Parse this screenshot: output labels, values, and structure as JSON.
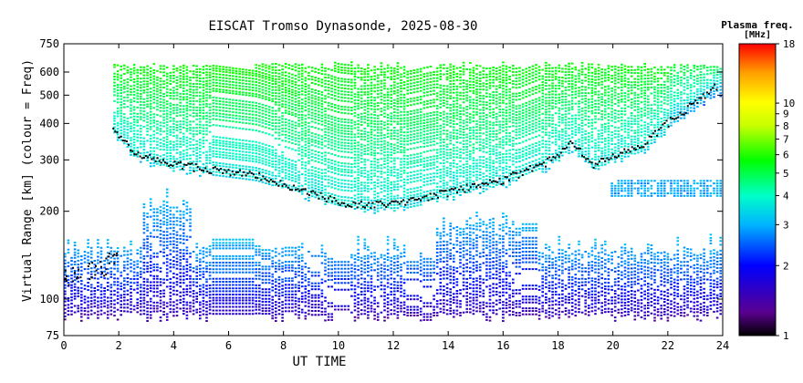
{
  "chart_data": {
    "type": "heatmap",
    "title": "EISCAT Tromso Dynasonde, 2025-08-30",
    "xlabel": "UT TIME",
    "ylabel": "Virtual Range [km] (colour = Freq)",
    "xlim": [
      0,
      24
    ],
    "ylim": [
      75,
      750
    ],
    "yscale": "log",
    "x_ticks": [
      0,
      2,
      4,
      6,
      8,
      10,
      12,
      14,
      16,
      18,
      20,
      22,
      24
    ],
    "y_ticks": [
      75,
      100,
      200,
      300,
      400,
      500,
      600,
      750
    ],
    "colorbar": {
      "title": "Plasma freq.",
      "unit": "[MHz]",
      "scale": "log",
      "range": [
        1,
        18
      ],
      "ticks": [
        1,
        2,
        3,
        4,
        5,
        6,
        7,
        8,
        9,
        10,
        18
      ],
      "colors": [
        "#000000",
        "#5a0090",
        "#0000ff",
        "#00b4ff",
        "#00ffc8",
        "#00ff00",
        "#c8ff00",
        "#ffff00",
        "#ffa000",
        "#ff0000"
      ]
    },
    "layers": {
      "f_region_base_km": [
        {
          "x": 1.8,
          "y": 380
        },
        {
          "x": 2.5,
          "y": 320
        },
        {
          "x": 3.5,
          "y": 295
        },
        {
          "x": 5,
          "y": 280
        },
        {
          "x": 7,
          "y": 265
        },
        {
          "x": 9,
          "y": 230
        },
        {
          "x": 10,
          "y": 215
        },
        {
          "x": 11,
          "y": 210
        },
        {
          "x": 12,
          "y": 212
        },
        {
          "x": 14,
          "y": 232
        },
        {
          "x": 16,
          "y": 255
        },
        {
          "x": 17.5,
          "y": 290
        },
        {
          "x": 18.5,
          "y": 340
        },
        {
          "x": 19.3,
          "y": 285
        },
        {
          "x": 20,
          "y": 310
        },
        {
          "x": 21,
          "y": 330
        },
        {
          "x": 22,
          "y": 400
        },
        {
          "x": 23,
          "y": 470
        },
        {
          "x": 23.7,
          "y": 530
        }
      ],
      "f_region_top_km": 650,
      "e_region_range_km": [
        88,
        160
      ],
      "sporadic_e_trace": [
        {
          "x": 0,
          "y": 118
        },
        {
          "x": 0.5,
          "y": 122
        },
        {
          "x": 1,
          "y": 125
        },
        {
          "x": 1.5,
          "y": 130
        },
        {
          "x": 1.8,
          "y": 135
        }
      ]
    }
  }
}
